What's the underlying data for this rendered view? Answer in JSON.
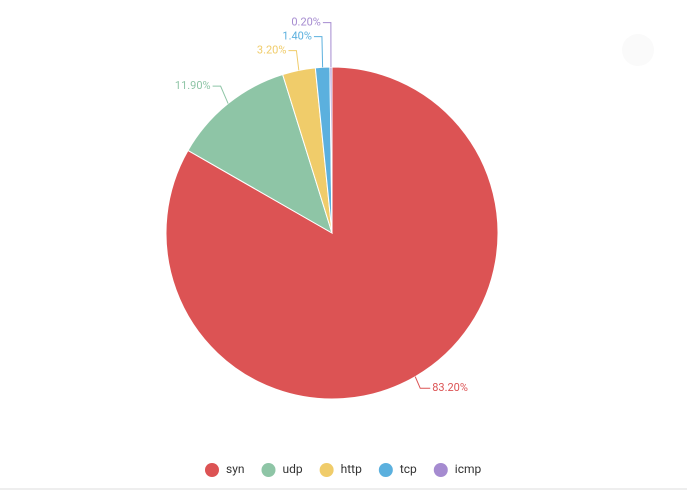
{
  "chart_data": {
    "type": "pie",
    "categories": [
      "syn",
      "udp",
      "http",
      "tcp",
      "icmp"
    ],
    "values": [
      83.2,
      11.9,
      3.2,
      1.4,
      0.2
    ],
    "value_labels": [
      "83.20%",
      "11.90%",
      "3.20%",
      "1.40%",
      "0.20%"
    ],
    "colors": [
      "#dc5354",
      "#8ec5a6",
      "#f0cc6a",
      "#5bb0de",
      "#a58bd0"
    ],
    "legend": "bottom"
  }
}
